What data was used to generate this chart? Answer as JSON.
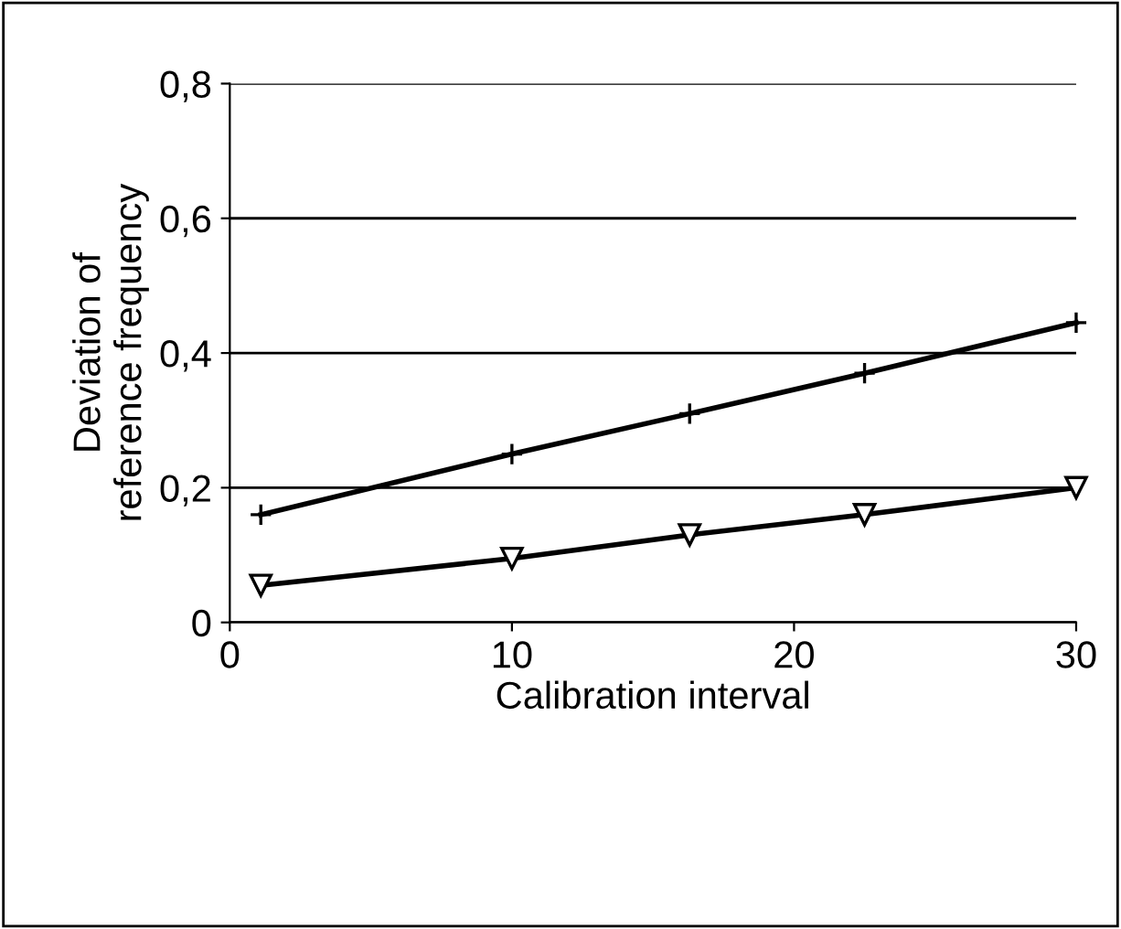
{
  "chart_data": {
    "type": "line",
    "xlabel": "Calibration interval",
    "ylabel": "Deviation of\nreference frequency",
    "xlim": [
      0,
      30
    ],
    "xticks": [
      0,
      10,
      20,
      30
    ],
    "ylim": [
      0,
      0.8
    ],
    "yticks": [
      {
        "value": 0,
        "label": "0"
      },
      {
        "value": 0.2,
        "label": "0,2"
      },
      {
        "value": 0.4,
        "label": "0,4"
      },
      {
        "value": 0.6,
        "label": "0,6"
      },
      {
        "value": 0.8,
        "label": "0,8"
      }
    ],
    "grid": "y",
    "series": [
      {
        "color": "#000000",
        "marker": "cross",
        "x": [
          1.1,
          10,
          16.3,
          22.5,
          30
        ],
        "values": [
          0.16,
          0.25,
          0.31,
          0.37,
          0.445
        ]
      },
      {
        "color": "#000000",
        "marker": "triangle",
        "x": [
          1.1,
          10,
          16.3,
          22.5,
          30
        ],
        "values": [
          0.055,
          0.095,
          0.13,
          0.16,
          0.2
        ]
      }
    ]
  }
}
